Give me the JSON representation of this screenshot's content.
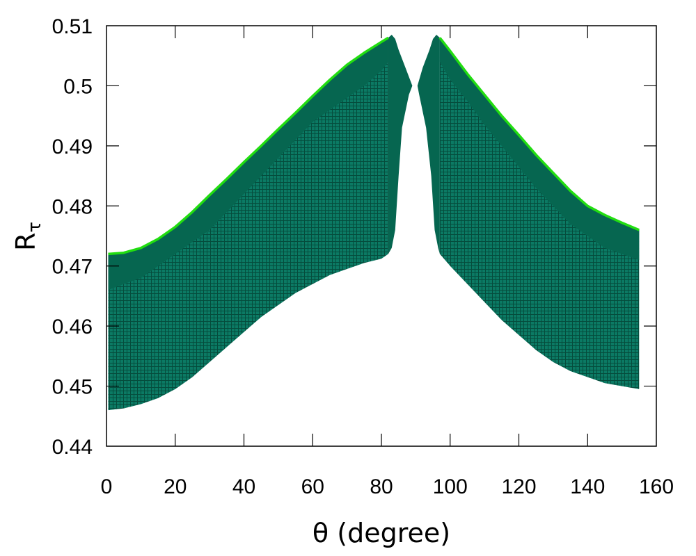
{
  "chart_data": {
    "type": "scatter",
    "title": "",
    "xlabel": "θ (degree)",
    "ylabel": "R",
    "ylabel_subscript": "τ",
    "xlim": [
      0,
      160
    ],
    "ylim": [
      0.44,
      0.51
    ],
    "x_ticks": [
      "0",
      "20",
      "40",
      "60",
      "80",
      "100",
      "120",
      "140",
      "160"
    ],
    "y_ticks": [
      "0.44",
      "0.45",
      "0.46",
      "0.47",
      "0.48",
      "0.49",
      "0.5",
      "0.51"
    ],
    "grid": false,
    "legend": "none",
    "marker": "+",
    "colors": {
      "band": "#066650",
      "edge": "#22dd11"
    },
    "series": [
      {
        "side": "left",
        "upper": [
          [
            0.5,
            0.472
          ],
          [
            5,
            0.4722
          ],
          [
            10,
            0.473
          ],
          [
            15,
            0.4745
          ],
          [
            20,
            0.4765
          ],
          [
            25,
            0.479
          ],
          [
            30,
            0.4818
          ],
          [
            35,
            0.4845
          ],
          [
            40,
            0.4873
          ],
          [
            45,
            0.49
          ],
          [
            50,
            0.4928
          ],
          [
            55,
            0.4955
          ],
          [
            60,
            0.4983
          ],
          [
            65,
            0.501
          ],
          [
            70,
            0.5035
          ],
          [
            75,
            0.5055
          ],
          [
            80,
            0.5073
          ],
          [
            82,
            0.508
          ]
        ],
        "dense_lower": [
          [
            0.5,
            0.466
          ],
          [
            5,
            0.467
          ],
          [
            10,
            0.468
          ],
          [
            15,
            0.47
          ],
          [
            20,
            0.472
          ],
          [
            25,
            0.474
          ],
          [
            30,
            0.476
          ],
          [
            35,
            0.479
          ],
          [
            40,
            0.482
          ],
          [
            45,
            0.485
          ],
          [
            50,
            0.488
          ],
          [
            55,
            0.491
          ],
          [
            60,
            0.494
          ],
          [
            65,
            0.496
          ],
          [
            70,
            0.498
          ],
          [
            75,
            0.5
          ],
          [
            80,
            0.5025
          ],
          [
            82,
            0.504
          ]
        ],
        "lower": [
          [
            0.5,
            0.446
          ],
          [
            5,
            0.4463
          ],
          [
            10,
            0.447
          ],
          [
            15,
            0.448
          ],
          [
            20,
            0.4495
          ],
          [
            25,
            0.4515
          ],
          [
            30,
            0.454
          ],
          [
            35,
            0.4565
          ],
          [
            40,
            0.459
          ],
          [
            45,
            0.4615
          ],
          [
            50,
            0.4635
          ],
          [
            55,
            0.4655
          ],
          [
            60,
            0.467
          ],
          [
            65,
            0.4685
          ],
          [
            70,
            0.4695
          ],
          [
            75,
            0.4705
          ],
          [
            80,
            0.4712
          ],
          [
            82,
            0.472
          ]
        ],
        "tip": [
          [
            82,
            0.508
          ],
          [
            83,
            0.5085
          ],
          [
            84,
            0.5078
          ],
          [
            85,
            0.506
          ],
          [
            87,
            0.503
          ],
          [
            89,
            0.5
          ],
          [
            88,
            0.4985
          ],
          [
            86,
            0.493
          ],
          [
            85,
            0.485
          ],
          [
            84,
            0.476
          ],
          [
            83,
            0.473
          ],
          [
            82,
            0.472
          ]
        ]
      },
      {
        "side": "right",
        "upper": [
          [
            97,
            0.508
          ],
          [
            100,
            0.5058
          ],
          [
            105,
            0.502
          ],
          [
            110,
            0.4985
          ],
          [
            115,
            0.495
          ],
          [
            120,
            0.4918
          ],
          [
            125,
            0.4885
          ],
          [
            130,
            0.4855
          ],
          [
            135,
            0.4825
          ],
          [
            140,
            0.48
          ],
          [
            145,
            0.4785
          ],
          [
            150,
            0.4772
          ],
          [
            155,
            0.476
          ]
        ],
        "dense_lower": [
          [
            97,
            0.504
          ],
          [
            100,
            0.501
          ],
          [
            105,
            0.4975
          ],
          [
            110,
            0.4935
          ],
          [
            115,
            0.49
          ],
          [
            120,
            0.4865
          ],
          [
            125,
            0.483
          ],
          [
            130,
            0.48
          ],
          [
            135,
            0.477
          ],
          [
            140,
            0.475
          ],
          [
            145,
            0.473
          ],
          [
            150,
            0.472
          ],
          [
            155,
            0.471
          ]
        ],
        "lower": [
          [
            97,
            0.472
          ],
          [
            100,
            0.47
          ],
          [
            105,
            0.467
          ],
          [
            110,
            0.464
          ],
          [
            115,
            0.461
          ],
          [
            120,
            0.4585
          ],
          [
            125,
            0.456
          ],
          [
            130,
            0.454
          ],
          [
            135,
            0.4525
          ],
          [
            140,
            0.4515
          ],
          [
            145,
            0.4505
          ],
          [
            150,
            0.45
          ],
          [
            155,
            0.4495
          ]
        ],
        "tip": [
          [
            97,
            0.508
          ],
          [
            96,
            0.5085
          ],
          [
            95,
            0.5078
          ],
          [
            94,
            0.506
          ],
          [
            92,
            0.503
          ],
          [
            90.5,
            0.5
          ],
          [
            91,
            0.4985
          ],
          [
            93,
            0.493
          ],
          [
            94.5,
            0.485
          ],
          [
            95.5,
            0.476
          ],
          [
            96.5,
            0.473
          ],
          [
            97,
            0.472
          ]
        ]
      }
    ]
  }
}
